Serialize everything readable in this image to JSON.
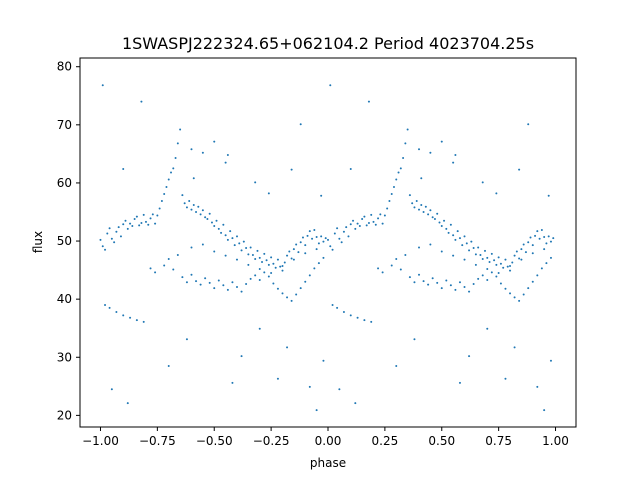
{
  "chart_data": {
    "type": "scatter",
    "title": "1SWASPJ222324.65+062104.2 Period 4023704.25s",
    "xlabel": "phase",
    "ylabel": "flux",
    "xlim": [
      -1.09,
      1.09
    ],
    "ylim": [
      18.0,
      81.5
    ],
    "xticks": [
      -1.0,
      -0.75,
      -0.5,
      -0.25,
      0.0,
      0.25,
      0.5,
      0.75,
      1.0
    ],
    "xtick_labels": [
      "−1.00",
      "−0.75",
      "−0.50",
      "−0.25",
      "0.00",
      "0.25",
      "0.50",
      "0.75",
      "1.00"
    ],
    "yticks": [
      20,
      30,
      40,
      50,
      60,
      70,
      80
    ],
    "ytick_labels": [
      "20",
      "30",
      "40",
      "50",
      "60",
      "70",
      "80"
    ],
    "grid": false,
    "marker_color": "#1f77b4",
    "phase_folded": true,
    "note_repeat": "values for phase -1..0 are repeated at phase 0..1",
    "series": [
      {
        "points": [
          [
            -1.0,
            50.2
          ],
          [
            -0.99,
            49.1
          ],
          [
            -0.98,
            48.5
          ],
          [
            -0.97,
            51.3
          ],
          [
            -0.96,
            52.2
          ],
          [
            -0.95,
            50.4
          ],
          [
            -0.94,
            49.8
          ],
          [
            -0.93,
            51.6
          ],
          [
            -0.92,
            52.4
          ],
          [
            -0.91,
            50.8
          ],
          [
            -0.9,
            52.9
          ],
          [
            -0.89,
            53.5
          ],
          [
            -0.88,
            52.1
          ],
          [
            -0.87,
            53.0
          ],
          [
            -0.86,
            52.6
          ],
          [
            -0.85,
            53.8
          ],
          [
            -0.84,
            54.2
          ],
          [
            -0.83,
            52.7
          ],
          [
            -0.82,
            53.1
          ],
          [
            -0.81,
            54.5
          ],
          [
            -0.8,
            53.3
          ],
          [
            -0.79,
            52.8
          ],
          [
            -0.78,
            53.9
          ],
          [
            -0.77,
            54.6
          ],
          [
            -0.76,
            53.0
          ],
          [
            -0.75,
            54.4
          ],
          [
            -0.74,
            55.6
          ],
          [
            -0.73,
            56.9
          ],
          [
            -0.72,
            58.1
          ],
          [
            -0.71,
            59.3
          ],
          [
            -0.7,
            60.6
          ],
          [
            -0.69,
            61.8
          ],
          [
            -0.68,
            62.5
          ],
          [
            -0.67,
            64.3
          ],
          [
            -0.66,
            66.8
          ],
          [
            -0.65,
            69.2
          ],
          [
            -0.64,
            57.9
          ],
          [
            -0.63,
            56.5
          ],
          [
            -0.62,
            55.8
          ],
          [
            -0.61,
            56.9
          ],
          [
            -0.6,
            55.4
          ],
          [
            -0.59,
            56.2
          ],
          [
            -0.58,
            55.0
          ],
          [
            -0.57,
            55.9
          ],
          [
            -0.56,
            54.6
          ],
          [
            -0.55,
            55.3
          ],
          [
            -0.54,
            54.1
          ],
          [
            -0.53,
            53.8
          ],
          [
            -0.52,
            54.7
          ],
          [
            -0.51,
            53.2
          ],
          [
            -0.5,
            52.6
          ],
          [
            -0.49,
            53.5
          ],
          [
            -0.48,
            52.1
          ],
          [
            -0.47,
            51.4
          ],
          [
            -0.46,
            52.8
          ],
          [
            -0.45,
            51.0
          ],
          [
            -0.44,
            50.2
          ],
          [
            -0.43,
            51.7
          ],
          [
            -0.42,
            50.5
          ],
          [
            -0.41,
            49.3
          ],
          [
            -0.4,
            50.8
          ],
          [
            -0.39,
            49.6
          ],
          [
            -0.38,
            48.4
          ],
          [
            -0.37,
            49.9
          ],
          [
            -0.36,
            48.8
          ],
          [
            -0.35,
            47.7
          ],
          [
            -0.34,
            48.9
          ],
          [
            -0.33,
            47.6
          ],
          [
            -0.32,
            46.9
          ],
          [
            -0.31,
            48.3
          ],
          [
            -0.3,
            47.1
          ],
          [
            -0.29,
            46.4
          ],
          [
            -0.28,
            47.8
          ],
          [
            -0.27,
            46.7
          ],
          [
            -0.26,
            45.9
          ],
          [
            -0.25,
            47.2
          ],
          [
            -0.24,
            46.1
          ],
          [
            -0.23,
            45.4
          ],
          [
            -0.22,
            46.8
          ],
          [
            -0.21,
            45.6
          ],
          [
            -0.2,
            44.9
          ],
          [
            -0.19,
            46.3
          ],
          [
            -0.18,
            47.5
          ],
          [
            -0.17,
            48.2
          ],
          [
            -0.16,
            47.0
          ],
          [
            -0.15,
            48.6
          ],
          [
            -0.14,
            49.4
          ],
          [
            -0.13,
            48.1
          ],
          [
            -0.12,
            49.8
          ],
          [
            -0.11,
            50.6
          ],
          [
            -0.1,
            49.3
          ],
          [
            -0.09,
            50.9
          ],
          [
            -0.08,
            51.7
          ],
          [
            -0.07,
            50.4
          ],
          [
            -0.06,
            51.9
          ],
          [
            -0.05,
            50.7
          ],
          [
            -0.04,
            49.6
          ],
          [
            -0.03,
            50.8
          ],
          [
            -0.02,
            49.9
          ],
          [
            -0.01,
            50.5
          ],
          [
            -0.98,
            39.0
          ],
          [
            -0.96,
            38.5
          ],
          [
            -0.93,
            37.8
          ],
          [
            -0.9,
            37.2
          ],
          [
            -0.87,
            36.8
          ],
          [
            -0.84,
            36.4
          ],
          [
            -0.81,
            36.1
          ],
          [
            -0.78,
            45.3
          ],
          [
            -0.76,
            44.6
          ],
          [
            -0.72,
            45.8
          ],
          [
            -0.7,
            46.9
          ],
          [
            -0.68,
            45.1
          ],
          [
            -0.64,
            43.8
          ],
          [
            -0.62,
            42.9
          ],
          [
            -0.6,
            44.2
          ],
          [
            -0.58,
            43.1
          ],
          [
            -0.56,
            42.5
          ],
          [
            -0.54,
            43.6
          ],
          [
            -0.52,
            42.8
          ],
          [
            -0.5,
            41.9
          ],
          [
            -0.48,
            43.2
          ],
          [
            -0.46,
            42.4
          ],
          [
            -0.44,
            41.6
          ],
          [
            -0.42,
            42.9
          ],
          [
            -0.4,
            42.1
          ],
          [
            -0.38,
            41.3
          ],
          [
            -0.36,
            42.6
          ],
          [
            -0.34,
            43.5
          ],
          [
            -0.32,
            44.1
          ],
          [
            -0.3,
            43.3
          ],
          [
            -0.28,
            44.6
          ],
          [
            -0.26,
            43.9
          ],
          [
            -0.24,
            42.7
          ],
          [
            -0.22,
            41.8
          ],
          [
            -0.2,
            41.0
          ],
          [
            -0.18,
            40.3
          ],
          [
            -0.16,
            39.7
          ],
          [
            -0.14,
            40.8
          ],
          [
            -0.12,
            41.9
          ],
          [
            -0.1,
            43.0
          ],
          [
            -0.08,
            44.1
          ],
          [
            -0.06,
            45.3
          ],
          [
            -0.04,
            46.2
          ],
          [
            -0.02,
            47.1
          ],
          [
            -0.66,
            47.6
          ],
          [
            -0.6,
            48.9
          ],
          [
            -0.55,
            49.4
          ],
          [
            -0.5,
            48.2
          ],
          [
            -0.45,
            47.5
          ],
          [
            -0.4,
            46.8
          ],
          [
            -0.35,
            45.9
          ],
          [
            -0.3,
            45.2
          ],
          [
            -0.25,
            44.5
          ],
          [
            -0.2,
            45.7
          ],
          [
            -0.15,
            46.8
          ],
          [
            -0.1,
            47.9
          ],
          [
            -0.05,
            48.6
          ],
          [
            -0.99,
            76.8
          ],
          [
            -0.82,
            74.0
          ],
          [
            -0.45,
            63.5
          ],
          [
            -0.44,
            64.8
          ],
          [
            -0.32,
            60.1
          ],
          [
            -0.55,
            65.2
          ],
          [
            -0.5,
            67.1
          ],
          [
            -0.59,
            60.8
          ],
          [
            -0.95,
            24.5
          ],
          [
            -0.88,
            22.1
          ],
          [
            -0.7,
            28.5
          ],
          [
            -0.62,
            33.1
          ],
          [
            -0.42,
            25.6
          ],
          [
            -0.38,
            30.2
          ],
          [
            -0.3,
            34.9
          ],
          [
            -0.22,
            26.3
          ],
          [
            -0.18,
            31.7
          ],
          [
            -0.08,
            24.9
          ],
          [
            -0.05,
            20.9
          ],
          [
            -0.02,
            29.4
          ],
          [
            -0.6,
            65.8
          ],
          [
            -0.12,
            70.1
          ],
          [
            -0.16,
            62.3
          ],
          [
            -0.03,
            57.8
          ],
          [
            -0.26,
            58.2
          ],
          [
            -0.9,
            62.4
          ]
        ]
      }
    ]
  }
}
